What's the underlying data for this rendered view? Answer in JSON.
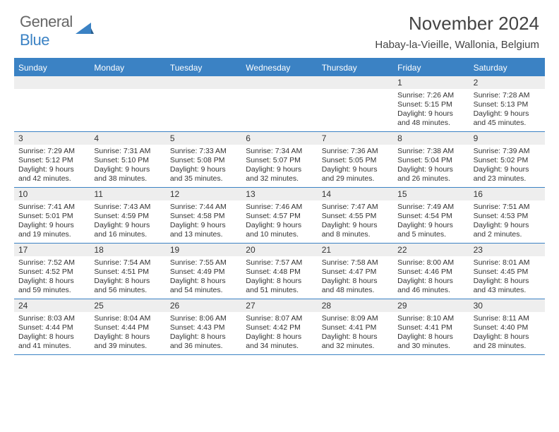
{
  "logo": {
    "text1": "General",
    "text2": "Blue"
  },
  "title": "November 2024",
  "location": "Habay-la-Vieille, Wallonia, Belgium",
  "colors": {
    "accent": "#3b82c4",
    "header_bg": "#3b82c4",
    "header_text": "#ffffff",
    "daynum_bg": "#eeeeee",
    "border": "#3b82c4",
    "text": "#333333",
    "background": "#ffffff"
  },
  "day_names": [
    "Sunday",
    "Monday",
    "Tuesday",
    "Wednesday",
    "Thursday",
    "Friday",
    "Saturday"
  ],
  "weeks": [
    [
      null,
      null,
      null,
      null,
      null,
      {
        "n": "1",
        "sr": "7:26 AM",
        "ss": "5:15 PM",
        "dl": "9 hours and 48 minutes."
      },
      {
        "n": "2",
        "sr": "7:28 AM",
        "ss": "5:13 PM",
        "dl": "9 hours and 45 minutes."
      }
    ],
    [
      {
        "n": "3",
        "sr": "7:29 AM",
        "ss": "5:12 PM",
        "dl": "9 hours and 42 minutes."
      },
      {
        "n": "4",
        "sr": "7:31 AM",
        "ss": "5:10 PM",
        "dl": "9 hours and 38 minutes."
      },
      {
        "n": "5",
        "sr": "7:33 AM",
        "ss": "5:08 PM",
        "dl": "9 hours and 35 minutes."
      },
      {
        "n": "6",
        "sr": "7:34 AM",
        "ss": "5:07 PM",
        "dl": "9 hours and 32 minutes."
      },
      {
        "n": "7",
        "sr": "7:36 AM",
        "ss": "5:05 PM",
        "dl": "9 hours and 29 minutes."
      },
      {
        "n": "8",
        "sr": "7:38 AM",
        "ss": "5:04 PM",
        "dl": "9 hours and 26 minutes."
      },
      {
        "n": "9",
        "sr": "7:39 AM",
        "ss": "5:02 PM",
        "dl": "9 hours and 23 minutes."
      }
    ],
    [
      {
        "n": "10",
        "sr": "7:41 AM",
        "ss": "5:01 PM",
        "dl": "9 hours and 19 minutes."
      },
      {
        "n": "11",
        "sr": "7:43 AM",
        "ss": "4:59 PM",
        "dl": "9 hours and 16 minutes."
      },
      {
        "n": "12",
        "sr": "7:44 AM",
        "ss": "4:58 PM",
        "dl": "9 hours and 13 minutes."
      },
      {
        "n": "13",
        "sr": "7:46 AM",
        "ss": "4:57 PM",
        "dl": "9 hours and 10 minutes."
      },
      {
        "n": "14",
        "sr": "7:47 AM",
        "ss": "4:55 PM",
        "dl": "9 hours and 8 minutes."
      },
      {
        "n": "15",
        "sr": "7:49 AM",
        "ss": "4:54 PM",
        "dl": "9 hours and 5 minutes."
      },
      {
        "n": "16",
        "sr": "7:51 AM",
        "ss": "4:53 PM",
        "dl": "9 hours and 2 minutes."
      }
    ],
    [
      {
        "n": "17",
        "sr": "7:52 AM",
        "ss": "4:52 PM",
        "dl": "8 hours and 59 minutes."
      },
      {
        "n": "18",
        "sr": "7:54 AM",
        "ss": "4:51 PM",
        "dl": "8 hours and 56 minutes."
      },
      {
        "n": "19",
        "sr": "7:55 AM",
        "ss": "4:49 PM",
        "dl": "8 hours and 54 minutes."
      },
      {
        "n": "20",
        "sr": "7:57 AM",
        "ss": "4:48 PM",
        "dl": "8 hours and 51 minutes."
      },
      {
        "n": "21",
        "sr": "7:58 AM",
        "ss": "4:47 PM",
        "dl": "8 hours and 48 minutes."
      },
      {
        "n": "22",
        "sr": "8:00 AM",
        "ss": "4:46 PM",
        "dl": "8 hours and 46 minutes."
      },
      {
        "n": "23",
        "sr": "8:01 AM",
        "ss": "4:45 PM",
        "dl": "8 hours and 43 minutes."
      }
    ],
    [
      {
        "n": "24",
        "sr": "8:03 AM",
        "ss": "4:44 PM",
        "dl": "8 hours and 41 minutes."
      },
      {
        "n": "25",
        "sr": "8:04 AM",
        "ss": "4:44 PM",
        "dl": "8 hours and 39 minutes."
      },
      {
        "n": "26",
        "sr": "8:06 AM",
        "ss": "4:43 PM",
        "dl": "8 hours and 36 minutes."
      },
      {
        "n": "27",
        "sr": "8:07 AM",
        "ss": "4:42 PM",
        "dl": "8 hours and 34 minutes."
      },
      {
        "n": "28",
        "sr": "8:09 AM",
        "ss": "4:41 PM",
        "dl": "8 hours and 32 minutes."
      },
      {
        "n": "29",
        "sr": "8:10 AM",
        "ss": "4:41 PM",
        "dl": "8 hours and 30 minutes."
      },
      {
        "n": "30",
        "sr": "8:11 AM",
        "ss": "4:40 PM",
        "dl": "8 hours and 28 minutes."
      }
    ]
  ],
  "labels": {
    "sunrise": "Sunrise:",
    "sunset": "Sunset:",
    "daylight": "Daylight:"
  }
}
